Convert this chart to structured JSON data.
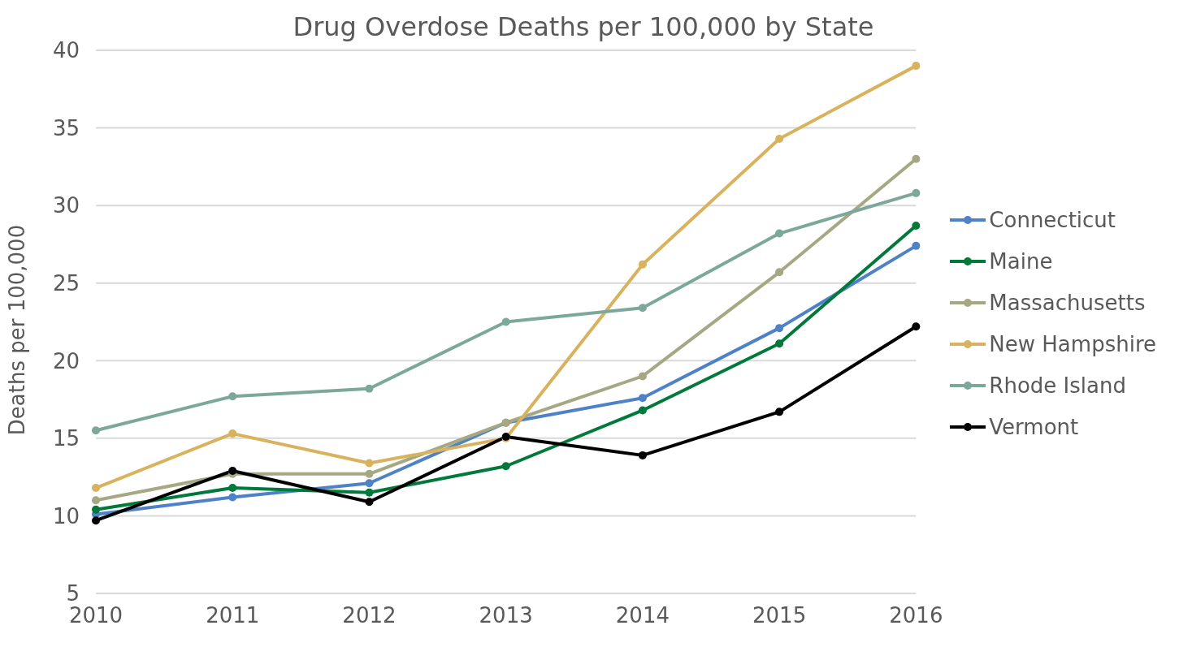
{
  "chart_data": {
    "type": "line",
    "title": "Drug Overdose Deaths per 100,000 by State",
    "ylabel": "Deaths per 100,000",
    "categories": [
      "2010",
      "2011",
      "2012",
      "2013",
      "2014",
      "2015",
      "2016"
    ],
    "series": [
      {
        "name": "Connecticut",
        "color": "#4f81c7",
        "values": [
          10.1,
          11.2,
          12.1,
          16.0,
          17.6,
          22.1,
          27.4
        ]
      },
      {
        "name": "Maine",
        "color": "#00793a",
        "values": [
          10.4,
          11.8,
          11.5,
          13.2,
          16.8,
          21.1,
          28.7
        ]
      },
      {
        "name": "Massachusetts",
        "color": "#a5a882",
        "values": [
          11.0,
          12.7,
          12.7,
          16.0,
          19.0,
          25.7,
          33.0
        ]
      },
      {
        "name": "New Hampshire",
        "color": "#d9b25e",
        "values": [
          11.8,
          15.3,
          13.4,
          15.0,
          26.2,
          34.3,
          39.0
        ]
      },
      {
        "name": "Rhode Island",
        "color": "#7ca89b",
        "values": [
          15.5,
          17.7,
          18.2,
          22.5,
          23.4,
          28.2,
          30.8
        ]
      },
      {
        "name": "Vermont",
        "color": "#000000",
        "values": [
          9.7,
          12.9,
          10.9,
          15.1,
          13.9,
          16.7,
          22.2
        ]
      }
    ],
    "ylim": [
      5,
      40
    ],
    "yticks": [
      5,
      10,
      15,
      20,
      25,
      30,
      35,
      40
    ],
    "grid": "y",
    "legend": "right",
    "marker": "circle",
    "line_style": "solid"
  }
}
